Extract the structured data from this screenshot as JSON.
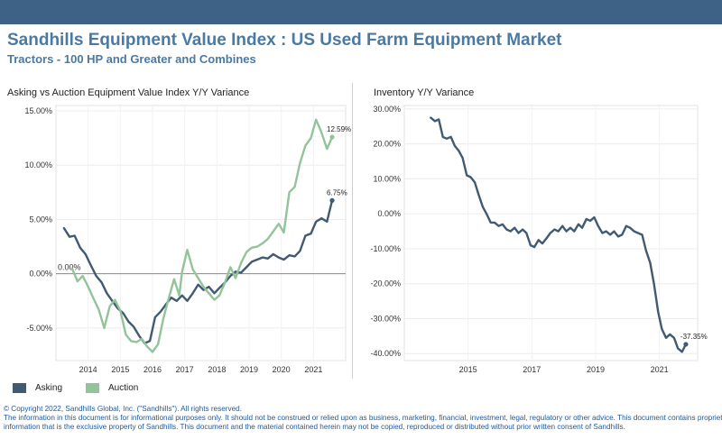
{
  "header": {
    "title": "Sandhills Equipment Value Index : US Used Farm Equipment Market",
    "subtitle": "Tractors - 100 HP and Greater and Combines"
  },
  "chart_data": [
    {
      "type": "line",
      "title": "Asking vs Auction Equipment Value Index Y/Y Variance",
      "ylim": [
        -8,
        15.5
      ],
      "yticks": [
        "15.00%",
        "10.00%",
        "5.00%",
        "0.00%",
        "-5.00%"
      ],
      "ytick_values": [
        15,
        10,
        5,
        0,
        -5
      ],
      "xticks": [
        "2014",
        "2015",
        "2016",
        "2017",
        "2018",
        "2019",
        "2020",
        "2021"
      ],
      "xtick_values": [
        2014,
        2015,
        2016,
        2017,
        2018,
        2019,
        2020,
        2021
      ],
      "xlim": [
        2013.0,
        2022.0
      ],
      "reference_line": 0,
      "reference_label": "0.00%",
      "series": [
        {
          "name": "Asking",
          "color": "#415a73",
          "end_label": "6.75%",
          "points": [
            [
              2013.25,
              4.2
            ],
            [
              2013.42,
              3.4
            ],
            [
              2013.58,
              3.5
            ],
            [
              2013.75,
              2.4
            ],
            [
              2013.92,
              1.8
            ],
            [
              2014.08,
              0.8
            ],
            [
              2014.25,
              -0.2
            ],
            [
              2014.42,
              -0.8
            ],
            [
              2014.58,
              -1.8
            ],
            [
              2014.75,
              -2.5
            ],
            [
              2014.92,
              -3.2
            ],
            [
              2015.08,
              -3.6
            ],
            [
              2015.25,
              -4.4
            ],
            [
              2015.42,
              -4.9
            ],
            [
              2015.58,
              -5.7
            ],
            [
              2015.75,
              -6.4
            ],
            [
              2015.92,
              -6.2
            ],
            [
              2016.08,
              -4.0
            ],
            [
              2016.25,
              -3.5
            ],
            [
              2016.42,
              -2.8
            ],
            [
              2016.58,
              -2.2
            ],
            [
              2016.75,
              -2.5
            ],
            [
              2016.92,
              -2.0
            ],
            [
              2017.08,
              -2.5
            ],
            [
              2017.25,
              -1.8
            ],
            [
              2017.42,
              -1.0
            ],
            [
              2017.58,
              -1.5
            ],
            [
              2017.75,
              -1.2
            ],
            [
              2017.92,
              -1.8
            ],
            [
              2018.08,
              -1.3
            ],
            [
              2018.25,
              -0.8
            ],
            [
              2018.42,
              -0.2
            ],
            [
              2018.58,
              0.2
            ],
            [
              2018.75,
              0.1
            ],
            [
              2018.92,
              0.6
            ],
            [
              2019.08,
              1.1
            ],
            [
              2019.25,
              1.3
            ],
            [
              2019.42,
              1.5
            ],
            [
              2019.58,
              1.4
            ],
            [
              2019.75,
              1.8
            ],
            [
              2019.92,
              1.5
            ],
            [
              2020.08,
              1.3
            ],
            [
              2020.25,
              1.7
            ],
            [
              2020.42,
              1.6
            ],
            [
              2020.58,
              2.1
            ],
            [
              2020.75,
              3.5
            ],
            [
              2020.92,
              3.7
            ],
            [
              2021.08,
              4.8
            ],
            [
              2021.25,
              5.1
            ],
            [
              2021.42,
              4.8
            ],
            [
              2021.58,
              6.75
            ]
          ]
        },
        {
          "name": "Auction",
          "color": "#93c39a",
          "end_label": "12.59%",
          "points": [
            [
              2013.5,
              0.5
            ],
            [
              2013.67,
              -0.7
            ],
            [
              2013.83,
              -0.2
            ],
            [
              2014.0,
              -1.2
            ],
            [
              2014.17,
              -2.3
            ],
            [
              2014.33,
              -3.3
            ],
            [
              2014.5,
              -5.0
            ],
            [
              2014.67,
              -3.0
            ],
            [
              2014.83,
              -2.4
            ],
            [
              2015.0,
              -3.4
            ],
            [
              2015.17,
              -5.6
            ],
            [
              2015.33,
              -6.2
            ],
            [
              2015.5,
              -6.3
            ],
            [
              2015.67,
              -6.0
            ],
            [
              2015.83,
              -6.7
            ],
            [
              2016.0,
              -7.2
            ],
            [
              2016.17,
              -6.5
            ],
            [
              2016.33,
              -4.2
            ],
            [
              2016.5,
              -2.3
            ],
            [
              2016.67,
              -0.5
            ],
            [
              2016.83,
              -2.0
            ],
            [
              2016.92,
              0.2
            ],
            [
              2017.08,
              2.2
            ],
            [
              2017.25,
              0.4
            ],
            [
              2017.42,
              -0.4
            ],
            [
              2017.58,
              -1.2
            ],
            [
              2017.75,
              -1.8
            ],
            [
              2017.92,
              -2.4
            ],
            [
              2018.08,
              -2.0
            ],
            [
              2018.25,
              -0.8
            ],
            [
              2018.42,
              0.6
            ],
            [
              2018.58,
              -0.4
            ],
            [
              2018.75,
              1.0
            ],
            [
              2018.92,
              2.0
            ],
            [
              2019.08,
              2.4
            ],
            [
              2019.25,
              2.5
            ],
            [
              2019.42,
              2.8
            ],
            [
              2019.58,
              3.2
            ],
            [
              2019.75,
              3.9
            ],
            [
              2019.92,
              4.6
            ],
            [
              2020.08,
              3.8
            ],
            [
              2020.25,
              7.5
            ],
            [
              2020.42,
              8.0
            ],
            [
              2020.58,
              10.2
            ],
            [
              2020.75,
              11.8
            ],
            [
              2020.92,
              12.5
            ],
            [
              2021.08,
              14.2
            ],
            [
              2021.25,
              13.0
            ],
            [
              2021.42,
              11.5
            ],
            [
              2021.58,
              12.59
            ]
          ]
        }
      ],
      "legend": [
        "Asking",
        "Auction"
      ]
    },
    {
      "type": "line",
      "title": "Inventory Y/Y Variance",
      "ylim": [
        -42,
        31
      ],
      "yticks": [
        "30.00%",
        "20.00%",
        "10.00%",
        "0.00%",
        "-10.00%",
        "-20.00%",
        "-30.00%",
        "-40.00%"
      ],
      "ytick_values": [
        30,
        20,
        10,
        0,
        -10,
        -20,
        -30,
        -40
      ],
      "xticks": [
        "2015",
        "2017",
        "2019",
        "2021"
      ],
      "xtick_values": [
        2015,
        2017,
        2019,
        2021
      ],
      "xlim": [
        2013.0,
        2022.2
      ],
      "series": [
        {
          "name": "Inventory",
          "color": "#415a73",
          "end_label": "-37.35%",
          "points": [
            [
              2013.83,
              27.5
            ],
            [
              2013.96,
              26.5
            ],
            [
              2014.08,
              27.0
            ],
            [
              2014.21,
              22.0
            ],
            [
              2014.33,
              21.5
            ],
            [
              2014.46,
              22.0
            ],
            [
              2014.58,
              19.5
            ],
            [
              2014.71,
              18.0
            ],
            [
              2014.83,
              16.0
            ],
            [
              2014.96,
              11.0
            ],
            [
              2015.08,
              10.5
            ],
            [
              2015.21,
              9.0
            ],
            [
              2015.33,
              5.5
            ],
            [
              2015.46,
              2.0
            ],
            [
              2015.58,
              0.0
            ],
            [
              2015.71,
              -2.5
            ],
            [
              2015.83,
              -2.5
            ],
            [
              2015.96,
              -3.5
            ],
            [
              2016.08,
              -3.0
            ],
            [
              2016.21,
              -4.5
            ],
            [
              2016.33,
              -5.0
            ],
            [
              2016.46,
              -4.0
            ],
            [
              2016.58,
              -5.5
            ],
            [
              2016.71,
              -4.5
            ],
            [
              2016.83,
              -5.5
            ],
            [
              2016.96,
              -9.0
            ],
            [
              2017.08,
              -9.5
            ],
            [
              2017.21,
              -7.5
            ],
            [
              2017.33,
              -8.5
            ],
            [
              2017.46,
              -7.0
            ],
            [
              2017.58,
              -5.5
            ],
            [
              2017.71,
              -4.5
            ],
            [
              2017.83,
              -5.0
            ],
            [
              2017.96,
              -3.5
            ],
            [
              2018.08,
              -5.0
            ],
            [
              2018.21,
              -4.0
            ],
            [
              2018.33,
              -5.0
            ],
            [
              2018.46,
              -3.0
            ],
            [
              2018.58,
              -4.0
            ],
            [
              2018.71,
              -1.5
            ],
            [
              2018.83,
              -2.0
            ],
            [
              2018.96,
              -1.0
            ],
            [
              2019.08,
              -3.5
            ],
            [
              2019.21,
              -5.5
            ],
            [
              2019.33,
              -5.0
            ],
            [
              2019.46,
              -6.0
            ],
            [
              2019.58,
              -5.0
            ],
            [
              2019.71,
              -6.5
            ],
            [
              2019.83,
              -6.0
            ],
            [
              2019.96,
              -3.5
            ],
            [
              2020.08,
              -4.0
            ],
            [
              2020.21,
              -5.0
            ],
            [
              2020.33,
              -5.5
            ],
            [
              2020.46,
              -6.0
            ],
            [
              2020.58,
              -10.5
            ],
            [
              2020.71,
              -14.0
            ],
            [
              2020.83,
              -20.0
            ],
            [
              2020.96,
              -28.0
            ],
            [
              2021.08,
              -33.0
            ],
            [
              2021.21,
              -35.5
            ],
            [
              2021.33,
              -34.5
            ],
            [
              2021.46,
              -35.5
            ],
            [
              2021.58,
              -38.5
            ],
            [
              2021.71,
              -39.5
            ],
            [
              2021.83,
              -37.35
            ]
          ]
        }
      ]
    }
  ],
  "footer": {
    "copyright": "© Copyright 2022, Sandhills Global, Inc. (\"Sandhills\"). All rights reserved.",
    "disclaimer_1": "The information in this document is for informational purposes only.  It should not be construed or relied upon as business, marketing, financial, investment, legal, regulatory or other advice. This document contains proprietary",
    "disclaimer_2": "information that is the exclusive property of Sandhills. This document and the material contained herein may not be copied, reproduced or distributed without prior written consent of Sandhills."
  }
}
